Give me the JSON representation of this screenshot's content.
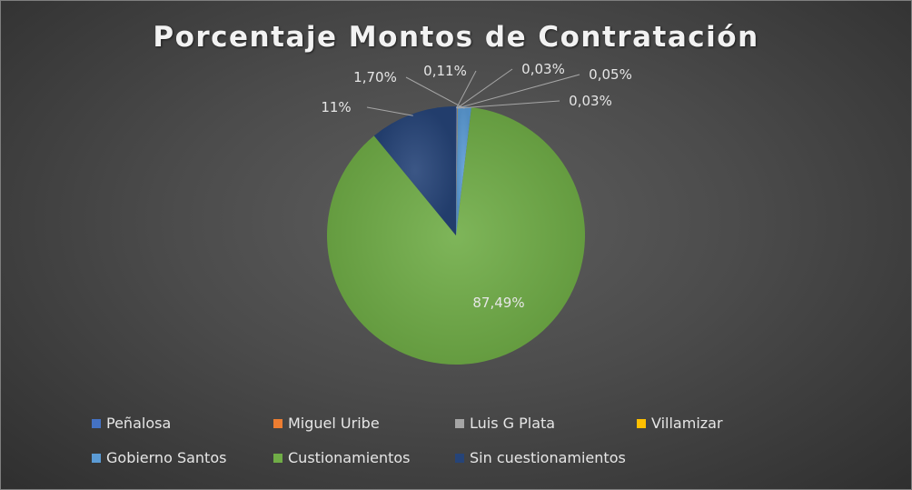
{
  "chart_data": {
    "type": "pie",
    "title": "Porcentaje Montos de Contratación",
    "series": [
      {
        "name": "Peñalosa",
        "value": 0.0011,
        "label": "0,11%",
        "color": "#4472c4"
      },
      {
        "name": "Miguel Uribe",
        "value": 0.0003,
        "label": "0,03%",
        "color": "#ed7d31"
      },
      {
        "name": "Luis G Plata",
        "value": 0.0005,
        "label": "0,05%",
        "color": "#a5a5a5"
      },
      {
        "name": "Villamizar",
        "value": 0.0003,
        "label": "0,03%",
        "color": "#ffc000"
      },
      {
        "name": "Gobierno Santos",
        "value": 0.017,
        "label": "1,70%",
        "color": "#5b9bd5"
      },
      {
        "name": "Custionamientos",
        "value": 0.8749,
        "label": "87,49%",
        "color": "#70ad47"
      },
      {
        "name": "Sin cuestionamientos",
        "value": 0.11,
        "label": "11%",
        "color": "#264478"
      }
    ],
    "legend": "bottom"
  }
}
